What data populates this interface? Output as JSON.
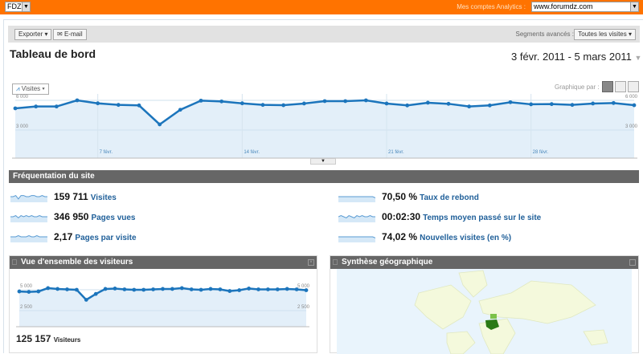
{
  "topbar": {
    "account": "FDZ",
    "accounts_label": "Mes comptes Analytics :",
    "site": "www.forumdz.com"
  },
  "toolbar": {
    "export_label": "Exporter",
    "email_label": "E-mail",
    "segments_label": "Segments avancés :",
    "segment_value": "Toutes les visites"
  },
  "header": {
    "title": "Tableau de bord",
    "date_range": "3 févr. 2011 - 5 mars 2011"
  },
  "graph": {
    "metric_tab": "Visites",
    "graph_by_label": "Graphique par :"
  },
  "chart_data": [
    {
      "type": "area",
      "y_ticks": [
        "6 000",
        "3 000"
      ],
      "y_tick_values": [
        6000,
        3000
      ],
      "x_tick_labels": [
        "7 févr.",
        "14 févr.",
        "21 févr.",
        "28 févr."
      ],
      "x": [
        "3 févr.",
        "4",
        "5",
        "6",
        "7",
        "8",
        "9",
        "10",
        "11",
        "12",
        "13",
        "14",
        "15",
        "16",
        "17",
        "18",
        "19",
        "20",
        "21",
        "22",
        "23",
        "24",
        "25",
        "26",
        "27",
        "28",
        "1 mars",
        "2",
        "3",
        "4",
        "5"
      ],
      "series": [
        {
          "name": "Visites",
          "values": [
            5190,
            5380,
            5380,
            6000,
            5700,
            5540,
            5490,
            3570,
            5050,
            5970,
            5890,
            5700,
            5540,
            5510,
            5680,
            5920,
            5920,
            6000,
            5680,
            5490,
            5760,
            5650,
            5380,
            5490,
            5810,
            5600,
            5620,
            5540,
            5680,
            5730,
            5510
          ]
        }
      ],
      "color": "#1c75bc",
      "fill": "#e3eff9"
    },
    {
      "type": "area",
      "y_ticks": [
        "5 000",
        "2 500"
      ],
      "y_tick_values": [
        5000,
        2500
      ],
      "series": [
        {
          "name": "Visiteurs",
          "values": [
            4800,
            4750,
            4800,
            5200,
            5100,
            5050,
            5000,
            3800,
            4500,
            5100,
            5150,
            5050,
            5000,
            5000,
            5050,
            5100,
            5100,
            5200,
            5050,
            5000,
            5100,
            5050,
            4850,
            4950,
            5150,
            5050,
            5050,
            5050,
            5100,
            5050,
            4950
          ]
        }
      ],
      "color": "#1c75bc",
      "fill": "#e3eff9"
    }
  ],
  "site_usage": {
    "title": "Fréquentation du site",
    "metrics": [
      {
        "value": "159 711",
        "label": "Visites",
        "spark": [
          5,
          5,
          6,
          3,
          6,
          6,
          5,
          5,
          6,
          6,
          5,
          5,
          6,
          5,
          5
        ]
      },
      {
        "value": "346 950",
        "label": "Pages vues",
        "spark": [
          5,
          5,
          6,
          4,
          6,
          5,
          6,
          5,
          6,
          5,
          5,
          6,
          5,
          5,
          5
        ]
      },
      {
        "value": "2,17",
        "label": "Pages par visite",
        "spark": [
          5,
          5,
          5,
          6,
          5,
          5,
          5,
          6,
          5,
          5,
          6,
          5,
          5,
          5,
          5
        ]
      },
      {
        "value": "70,50 %",
        "label": "Taux de rebond",
        "spark": [
          5,
          5,
          5,
          5,
          5,
          5,
          5,
          5,
          5,
          5,
          5,
          5,
          5,
          5,
          4
        ]
      },
      {
        "value": "00:02:30",
        "label": "Temps moyen passé sur le site",
        "spark": [
          5,
          6,
          5,
          4,
          6,
          5,
          4,
          6,
          5,
          6,
          5,
          5,
          6,
          5,
          5
        ]
      },
      {
        "value": "74,02 %",
        "label": "Nouvelles visites (en %)",
        "spark": [
          5,
          5,
          5,
          5,
          5,
          5,
          5,
          5,
          5,
          5,
          5,
          5,
          5,
          5,
          4
        ]
      }
    ]
  },
  "visitors_overview": {
    "title": "Vue d'ensemble des visiteurs",
    "total": "125 157",
    "total_label": "Visiteurs"
  },
  "geo": {
    "title": "Synthèse géographique",
    "highlight_dark": "#2a7a14",
    "highlight_light": "#7cc24a",
    "land": "#f4f9dc",
    "sea": "#e9f4fc"
  }
}
